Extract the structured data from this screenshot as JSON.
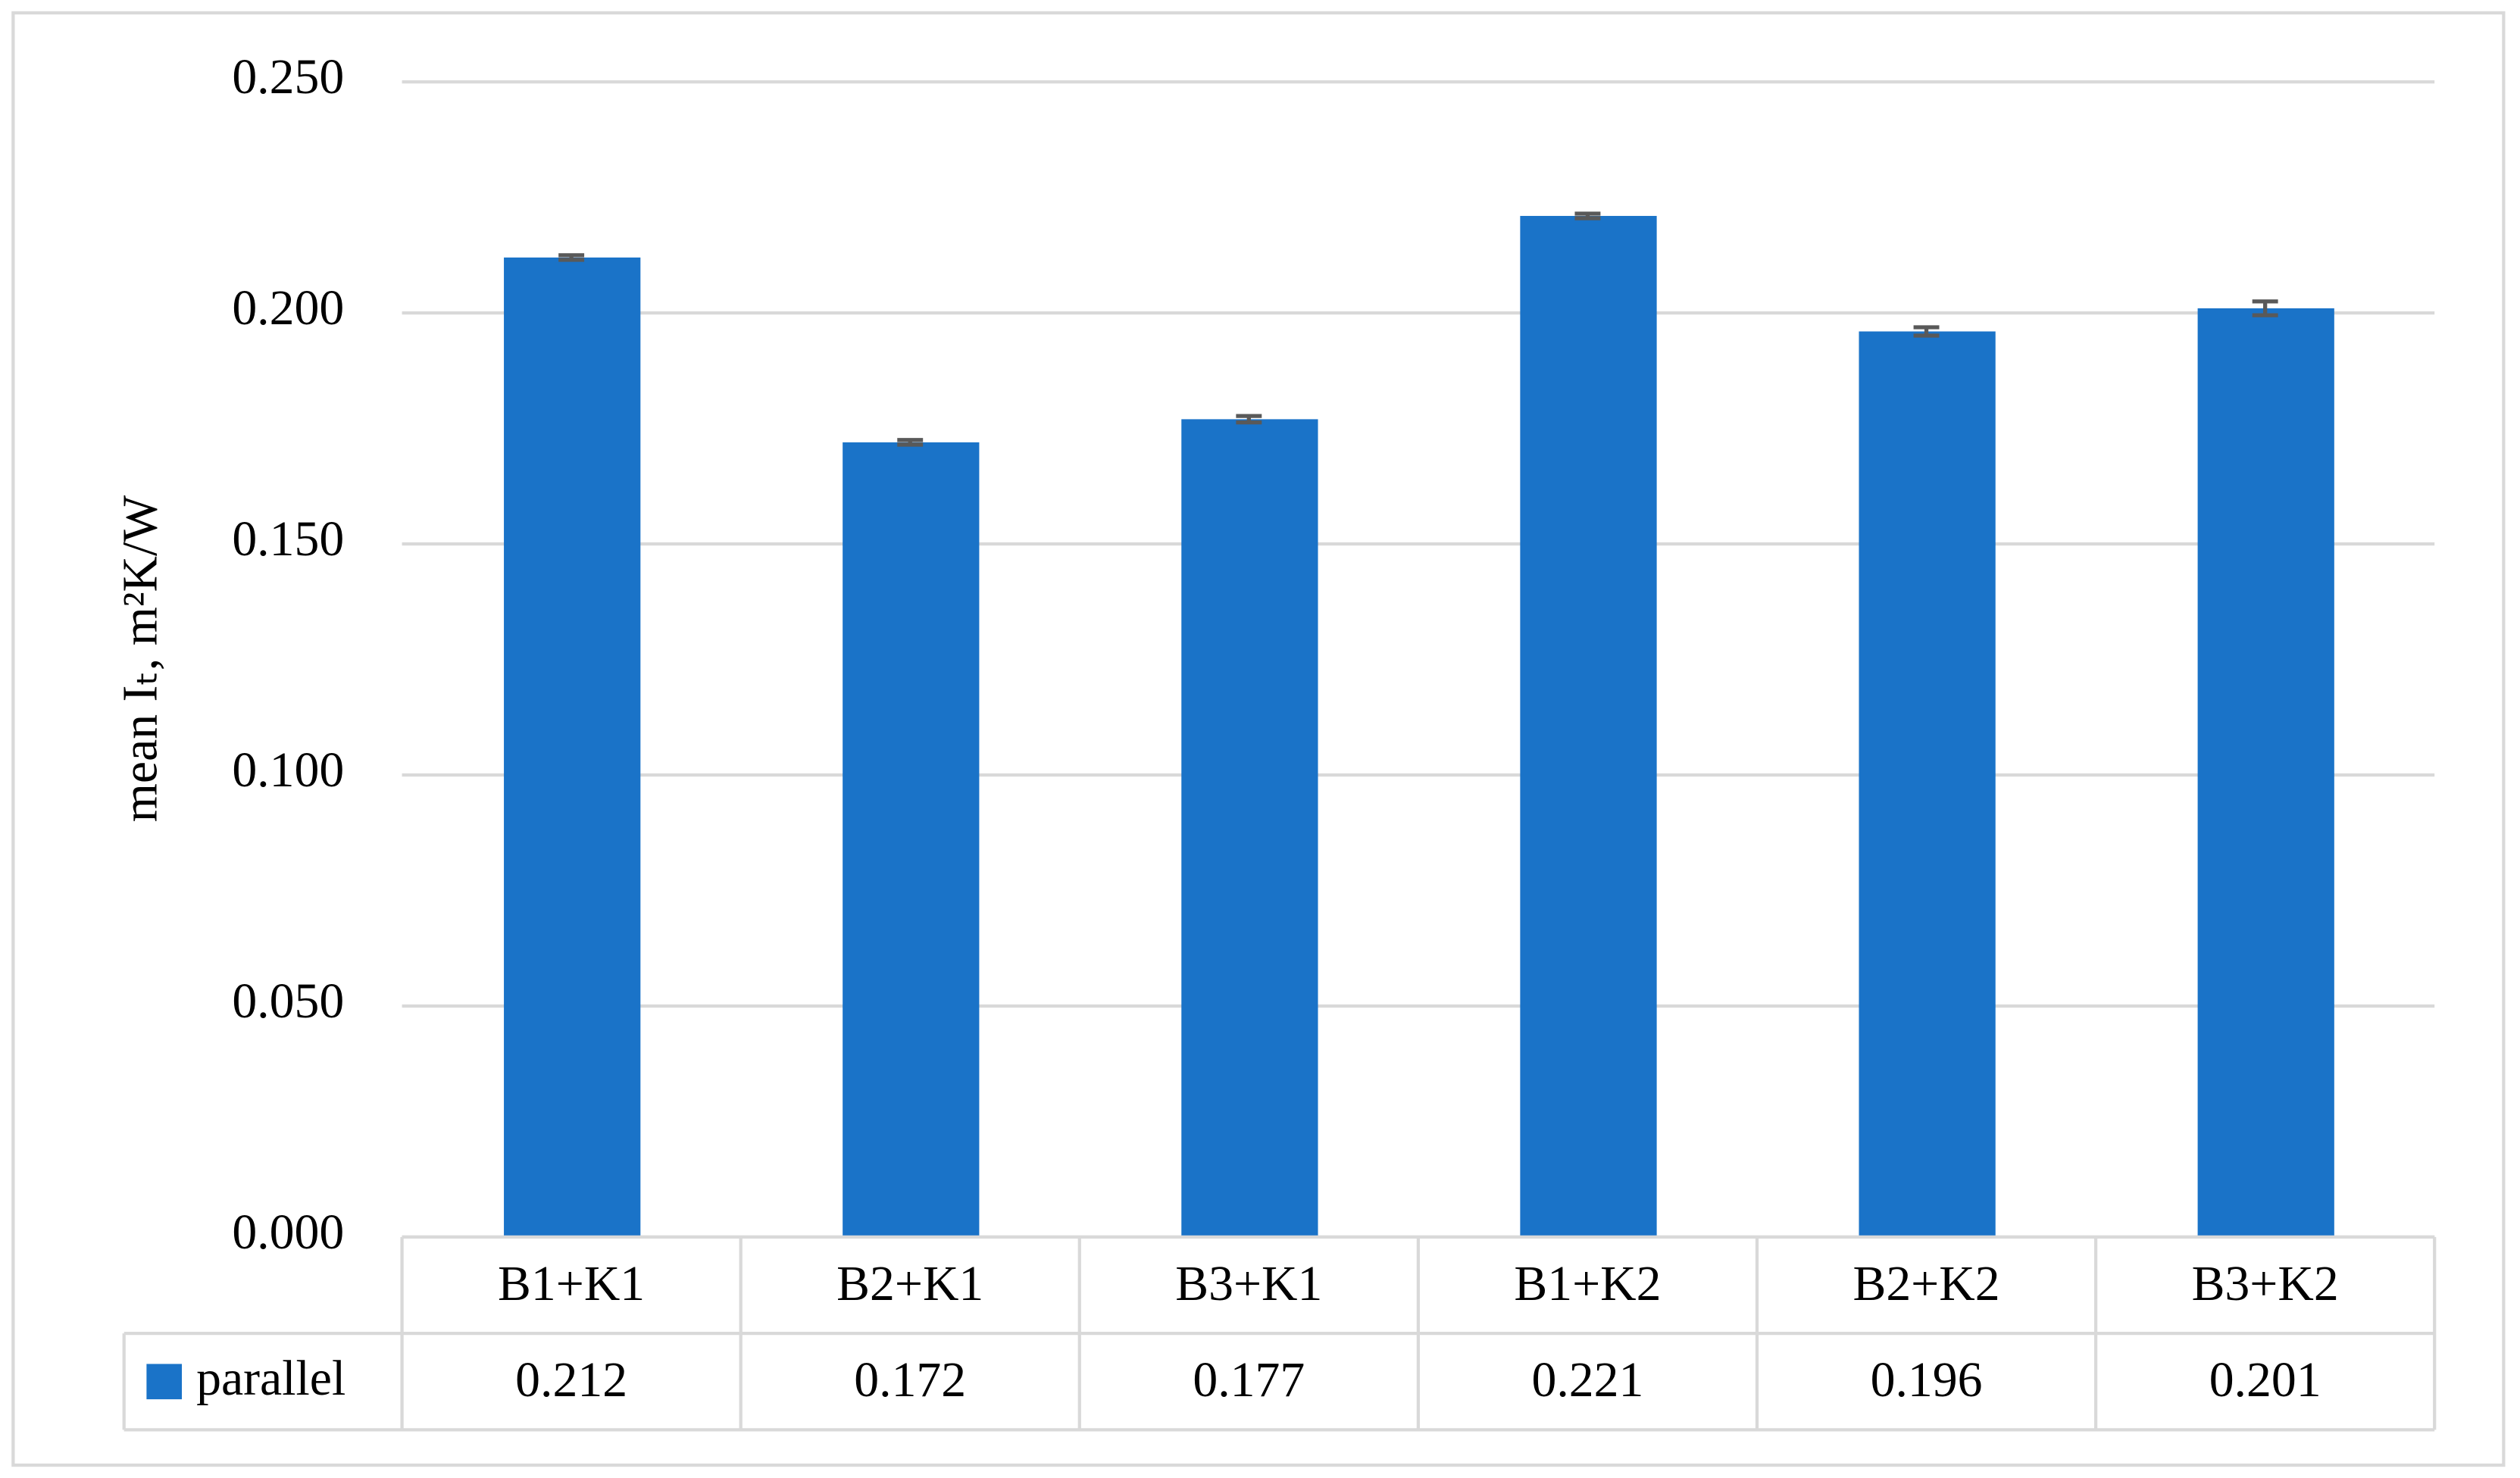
{
  "chart_data": {
    "type": "bar",
    "y_label": "mean Iₜ, m²K/W",
    "categories": [
      "B1+K1",
      "B2+K1",
      "B3+K1",
      "B1+K2",
      "B2+K2",
      "B3+K2"
    ],
    "series": [
      {
        "name": "parallel",
        "color": "#1a73c8",
        "values": [
          0.212,
          0.172,
          0.177,
          0.221,
          0.196,
          0.201
        ],
        "errors": [
          0.0005,
          0.0005,
          0.0007,
          0.0005,
          0.0009,
          0.0015
        ]
      }
    ],
    "ylim": [
      0,
      0.25
    ],
    "yticks": [
      {
        "value": 0,
        "label": "0.000"
      },
      {
        "value": 0.05,
        "label": "0.050"
      },
      {
        "value": 0.1,
        "label": "0.100"
      },
      {
        "value": 0.15,
        "label": "0.150"
      },
      {
        "value": 0.2,
        "label": "0.200"
      },
      {
        "value": 0.25,
        "label": "0.250"
      }
    ],
    "grid": true,
    "data_table": true
  }
}
